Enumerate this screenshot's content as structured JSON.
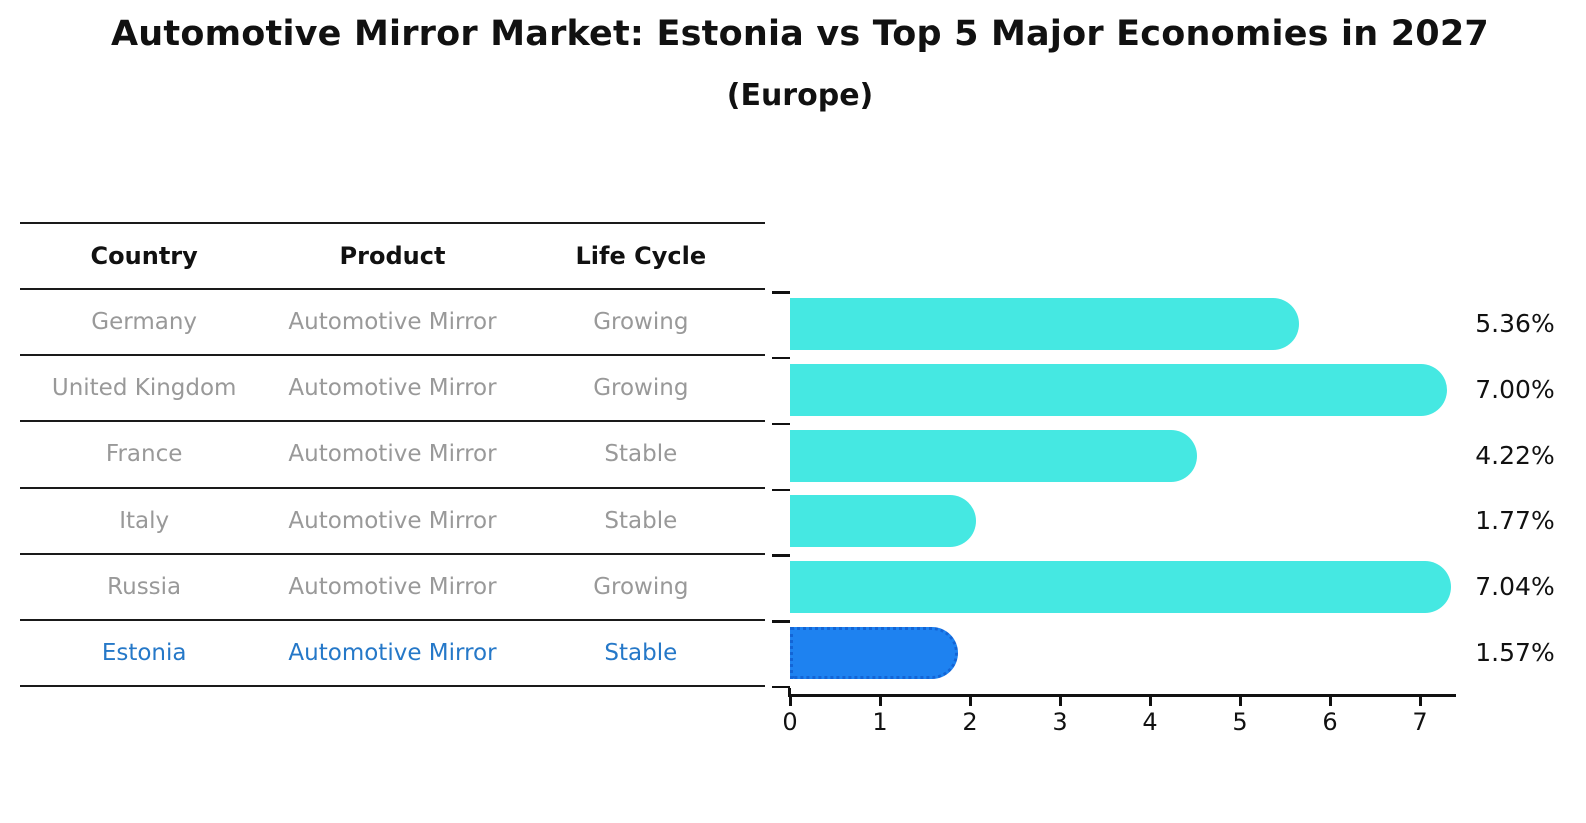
{
  "header": {
    "title": "Automotive Mirror Market: Estonia vs Top 5 Major Economies in 2027",
    "subtitle": "(Europe)"
  },
  "table": {
    "columns": [
      "Country",
      "Product",
      "Life Cycle"
    ],
    "rows": [
      {
        "country": "Germany",
        "product": "Automotive Mirror",
        "life_cycle": "Growing"
      },
      {
        "country": "United Kingdom",
        "product": "Automotive Mirror",
        "life_cycle": "Growing"
      },
      {
        "country": "France",
        "product": "Automotive Mirror",
        "life_cycle": "Stable"
      },
      {
        "country": "Italy",
        "product": "Automotive Mirror",
        "life_cycle": "Stable"
      },
      {
        "country": "Russia",
        "product": "Automotive Mirror",
        "life_cycle": "Growing"
      },
      {
        "country": "Estonia",
        "product": "Automotive Mirror",
        "life_cycle": "Stable"
      }
    ],
    "highlight_row": "Estonia"
  },
  "chart_data": {
    "type": "bar",
    "orientation": "horizontal",
    "title": "Automotive Mirror Market: Estonia vs Top 5 Major Economies in 2027",
    "subtitle": "(Europe)",
    "categories": [
      "Germany",
      "United Kingdom",
      "France",
      "Italy",
      "Russia",
      "Estonia"
    ],
    "values": [
      5.36,
      7.0,
      4.22,
      1.77,
      7.04,
      1.57
    ],
    "value_labels": [
      "5.36%",
      "7.00%",
      "4.22%",
      "1.77%",
      "7.04%",
      "1.57%"
    ],
    "x_ticks": [
      "0",
      "1",
      "2",
      "3",
      "4",
      "5",
      "6",
      "7"
    ],
    "xlim": [
      0,
      7.4
    ],
    "grid": false,
    "legend": "none",
    "highlight_category": "Estonia",
    "bar_color": "#45E8E2",
    "highlight_bar_color": "#1E82F0",
    "highlight_border_color": "#1365D6"
  },
  "colors": {
    "bar": "#45E8E2",
    "highlight_bar": "#1E82F0",
    "highlight_border": "#1365D6",
    "highlight_text": "#2578C8",
    "muted_text": "#999999",
    "text": "#111111"
  }
}
